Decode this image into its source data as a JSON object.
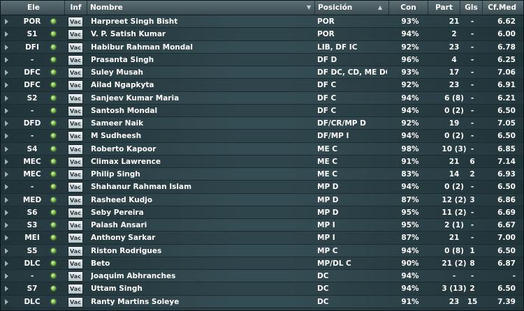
{
  "headers": {
    "ele": "Ele",
    "inf": "Inf",
    "nombre": "Nombre",
    "posicion": "Posición",
    "con": "Con",
    "part": "Part",
    "gls": "Gls",
    "cfmed": "Cf.Med"
  },
  "rows": [
    {
      "ele": "POR",
      "inf": "Vac",
      "nombre": "Harpreet Singh Bisht",
      "pos": "POR",
      "con": "93%",
      "part": "21",
      "gls": "-",
      "cf": "6.62"
    },
    {
      "ele": "S1",
      "inf": "Vac",
      "nombre": "V. P. Satish Kumar",
      "pos": "POR",
      "con": "94%",
      "part": "2",
      "gls": "-",
      "cf": "6.00"
    },
    {
      "ele": "DFI",
      "inf": "Vac",
      "nombre": "Habibur Rahman Mondal",
      "pos": "LIB, DF IC",
      "con": "92%",
      "part": "23",
      "gls": "-",
      "cf": "6.78"
    },
    {
      "ele": "-",
      "inf": "Vac",
      "nombre": "Prasanta Singh",
      "pos": "DF D",
      "con": "96%",
      "part": "4",
      "gls": "-",
      "cf": "6.25"
    },
    {
      "ele": "DFC",
      "inf": "Vac",
      "nombre": "Suley Musah",
      "pos": "DF DC, CD, ME DC",
      "con": "93%",
      "part": "17",
      "gls": "-",
      "cf": "7.06"
    },
    {
      "ele": "DFC",
      "inf": "Vac",
      "nombre": "Ailad Ngapkyta",
      "pos": "DF C",
      "con": "92%",
      "part": "23",
      "gls": "-",
      "cf": "6.91"
    },
    {
      "ele": "S2",
      "inf": "Vac",
      "nombre": "Sanjeev Kumar Maria",
      "pos": "DF C",
      "con": "94%",
      "part": "6 (8)",
      "gls": "-",
      "cf": "6.21"
    },
    {
      "ele": "-",
      "inf": "Vac",
      "nombre": "Santosh Mondal",
      "pos": "DF C",
      "con": "94%",
      "part": "0 (2)",
      "gls": "-",
      "cf": "6.50"
    },
    {
      "ele": "DFD",
      "inf": "Vac",
      "nombre": "Sameer Naik",
      "pos": "DF/CR/MP D",
      "con": "92%",
      "part": "19",
      "gls": "-",
      "cf": "7.05"
    },
    {
      "ele": "-",
      "inf": "Vac",
      "nombre": "M Sudheesh",
      "pos": "DF/MP I",
      "con": "94%",
      "part": "0 (2)",
      "gls": "-",
      "cf": "6.50"
    },
    {
      "ele": "S4",
      "inf": "Vac",
      "nombre": "Roberto Kapoor",
      "pos": "ME C",
      "con": "98%",
      "part": "10 (3)",
      "gls": "-",
      "cf": "6.85"
    },
    {
      "ele": "MEC",
      "inf": "Vac",
      "nombre": "Climax Lawrence",
      "pos": "ME C",
      "con": "91%",
      "part": "21",
      "gls": "6",
      "cf": "7.14"
    },
    {
      "ele": "MEC",
      "inf": "Vac",
      "nombre": "Philip Singh",
      "pos": "ME C",
      "con": "83%",
      "part": "14",
      "gls": "2",
      "cf": "6.93"
    },
    {
      "ele": "-",
      "inf": "Vac",
      "nombre": "Shahanur Rahman Islam",
      "pos": "MP D",
      "con": "94%",
      "part": "0 (2)",
      "gls": "-",
      "cf": "6.50"
    },
    {
      "ele": "MED",
      "inf": "Vac",
      "nombre": "Rasheed Kudjo",
      "pos": "MP D",
      "con": "87%",
      "part": "12 (2)",
      "gls": "3",
      "cf": "6.86"
    },
    {
      "ele": "S6",
      "inf": "Vac",
      "nombre": "Seby Pereira",
      "pos": "MP D",
      "con": "95%",
      "part": "11 (2)",
      "gls": "-",
      "cf": "6.69"
    },
    {
      "ele": "S3",
      "inf": "Vac",
      "nombre": "Palash Ansari",
      "pos": "MP I",
      "con": "95%",
      "part": "2 (1)",
      "gls": "-",
      "cf": "6.67"
    },
    {
      "ele": "MEI",
      "inf": "Vac",
      "nombre": "Anthony Sarkar",
      "pos": "MP I",
      "con": "87%",
      "part": "21",
      "gls": "-",
      "cf": "7.00"
    },
    {
      "ele": "S5",
      "inf": "Vac",
      "nombre": "Riston Rodrigues",
      "pos": "MP C",
      "con": "94%",
      "part": "0 (8)",
      "gls": "1",
      "cf": "6.50"
    },
    {
      "ele": "DLC",
      "inf": "Vac",
      "nombre": "Beto",
      "pos": "MP/DL C",
      "con": "90%",
      "part": "21 (2)",
      "gls": "8",
      "cf": "6.87"
    },
    {
      "ele": "-",
      "inf": "Vac",
      "nombre": "Joaquim Abhranches",
      "pos": "DC",
      "con": "94%",
      "part": "-",
      "gls": "-",
      "cf": "-"
    },
    {
      "ele": "S7",
      "inf": "Vac",
      "nombre": "Uttam Singh",
      "pos": "DC",
      "con": "94%",
      "part": "3 (13)",
      "gls": "2",
      "cf": "6.50"
    },
    {
      "ele": "DLC",
      "inf": "Vac",
      "nombre": "Ranty Martins Soleye",
      "pos": "DC",
      "con": "91%",
      "part": "23",
      "gls": "15",
      "cf": "7.39"
    }
  ]
}
